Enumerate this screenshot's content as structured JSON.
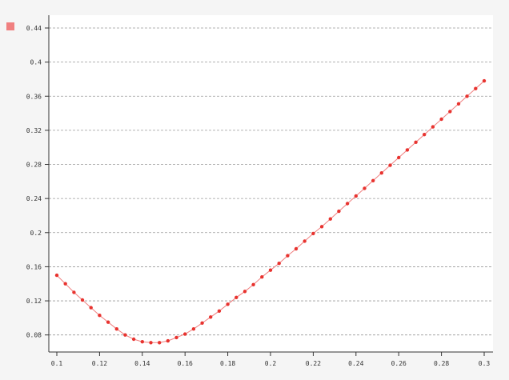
{
  "chart_data": {
    "type": "line",
    "title": "",
    "xlabel": "",
    "ylabel": "",
    "xlim": [
      0.1,
      0.3
    ],
    "ylim": [
      0.06,
      0.455
    ],
    "x_ticks": [
      "0.1",
      "0.12",
      "0.14",
      "0.16",
      "0.18",
      "0.2",
      "0.22",
      "0.24",
      "0.26",
      "0.28",
      "0.3"
    ],
    "y_ticks": [
      "0.08",
      "0.12",
      "0.16",
      "0.2",
      "0.24",
      "0.28",
      "0.32",
      "0.36",
      "0.4",
      "0.44"
    ],
    "grid": "horizontal-dashed",
    "legend": {
      "placement": "top-left",
      "color": "#f08080"
    },
    "colors": {
      "line": "#f08080",
      "marker": "#e8332f",
      "background_plot": "#ffffff",
      "background_page": "#f5f5f5",
      "grid": "#999999"
    },
    "series": [
      {
        "x": [
          0.1,
          0.104,
          0.108,
          0.112,
          0.116,
          0.12,
          0.124,
          0.128,
          0.132,
          0.136,
          0.14,
          0.144,
          0.148,
          0.152,
          0.156,
          0.16,
          0.164,
          0.168,
          0.172,
          0.176,
          0.18,
          0.184,
          0.188,
          0.192,
          0.196,
          0.2,
          0.204,
          0.208,
          0.212,
          0.216,
          0.22,
          0.224,
          0.228,
          0.232,
          0.236,
          0.24,
          0.244,
          0.248,
          0.252,
          0.256,
          0.26,
          0.264,
          0.268,
          0.272,
          0.276,
          0.28,
          0.284,
          0.288,
          0.292,
          0.296,
          0.3
        ],
        "values": [
          0.15,
          0.14,
          0.13,
          0.121,
          0.112,
          0.103,
          0.095,
          0.087,
          0.08,
          0.075,
          0.072,
          0.071,
          0.071,
          0.073,
          0.077,
          0.081,
          0.087,
          0.094,
          0.101,
          0.108,
          0.116,
          0.124,
          0.131,
          0.139,
          0.148,
          0.156,
          0.164,
          0.173,
          0.181,
          0.19,
          0.199,
          0.207,
          0.216,
          0.225,
          0.234,
          0.243,
          0.252,
          0.261,
          0.27,
          0.279,
          0.288,
          0.297,
          0.306,
          0.315,
          0.324,
          0.333,
          0.342,
          0.351,
          0.36,
          0.369,
          0.378
        ]
      }
    ]
  }
}
